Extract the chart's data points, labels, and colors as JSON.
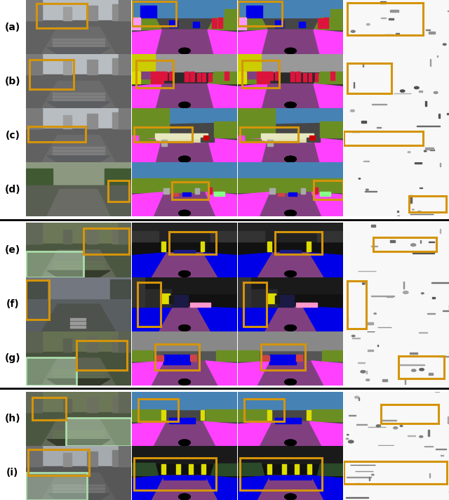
{
  "figure_width": 6.4,
  "figure_height": 7.12,
  "dpi": 100,
  "bg_color": "#ffffff",
  "row_labels": [
    "(a)",
    "(b)",
    "(c)",
    "(d)",
    "(e)",
    "(f)",
    "(g)",
    "(h)",
    "(i)"
  ],
  "orange_color": "#D4940A",
  "green_color": "#90EE90",
  "sep_line_color": "#000000",
  "label_fontsize": 10,
  "seg_colors": {
    "road": "#804080",
    "sidewalk": "#FF40FF",
    "building": "#464646",
    "wall": "#666633",
    "vegetation": "#6B8E23",
    "terrain": "#98FB98",
    "sky": "#4682B4",
    "person": "#DC143C",
    "car": "#0000E8",
    "bus": "#003C64",
    "motorcycle": "#9400D3",
    "bicycle": "#770077",
    "pole": "#aaaaaa",
    "traffic_sign": "#DCDC00",
    "traffic_light": "#DCDC00",
    "fence": "#804060",
    "rider": "#FF8800",
    "truck": "#000080",
    "black": "#111111",
    "dark_gray": "#333333",
    "gray": "#555555",
    "light_magenta": "#CC55CC",
    "pink": "#FF99CC",
    "light_green": "#88CC44",
    "dark_green": "#2d5a1b",
    "blue": "#0000CC",
    "dark_blue": "#000044",
    "brown": "#8B4513",
    "beige": "#F5DEB3",
    "white": "#FFFFFF",
    "light_gray": "#DDDDDD",
    "very_light_gray": "#F5F5F5"
  }
}
